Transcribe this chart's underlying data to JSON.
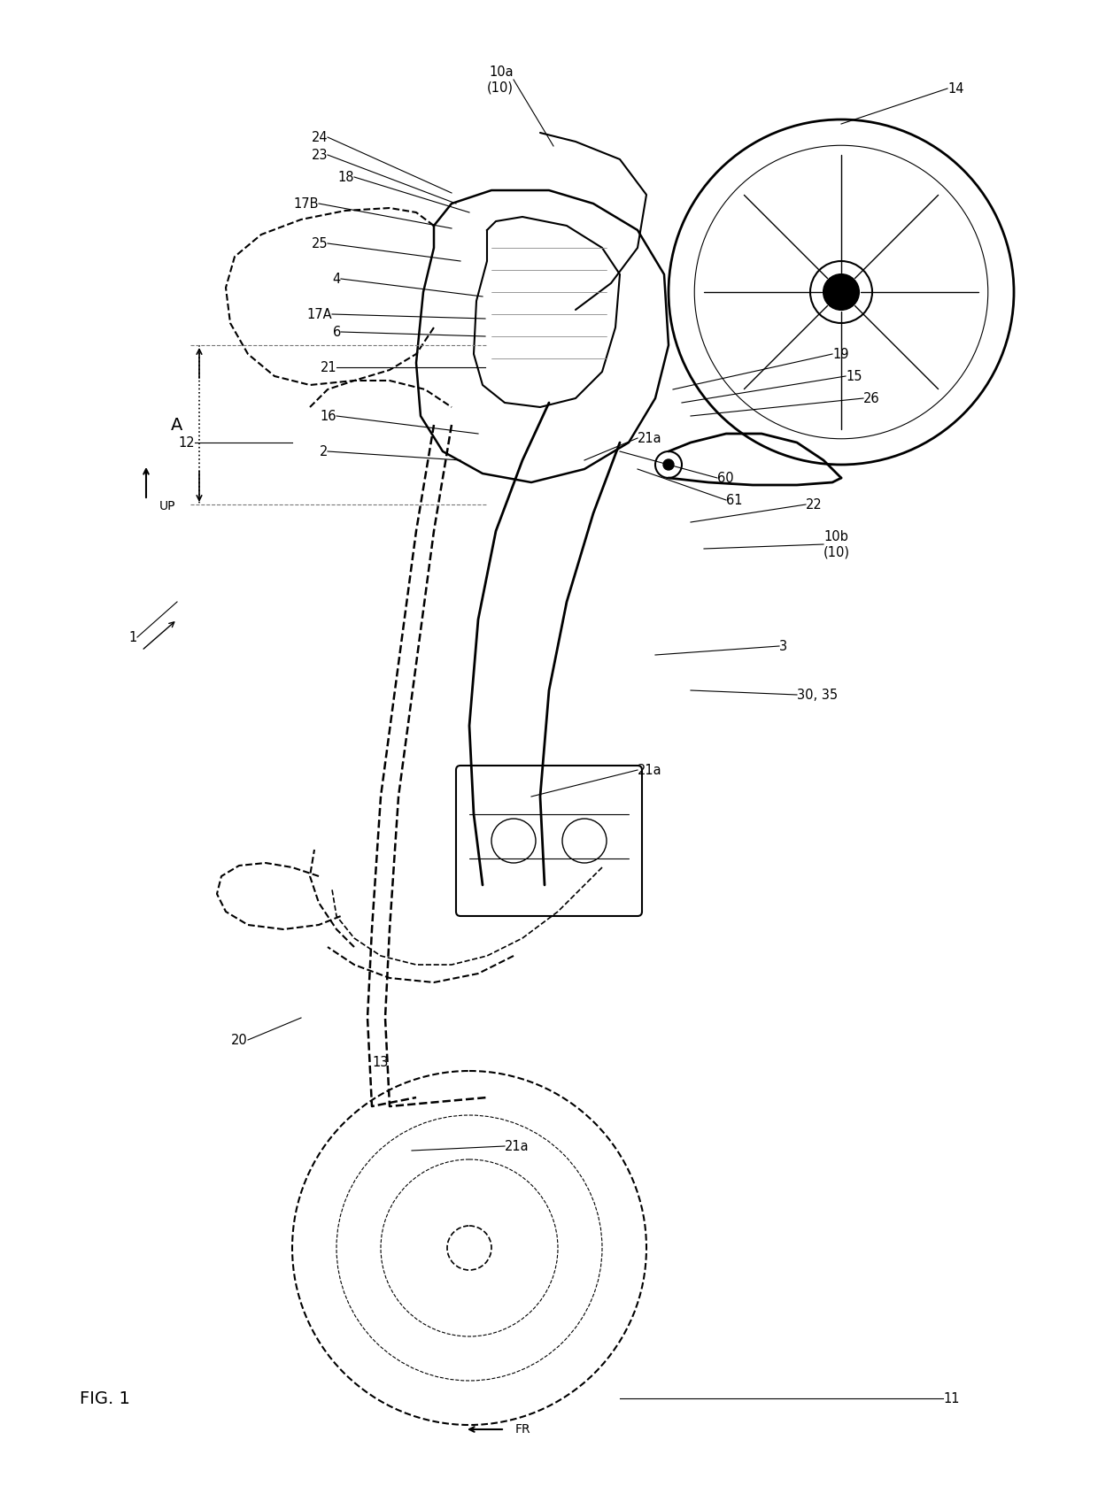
{
  "fig_label": "FIG. 1",
  "title": "",
  "background_color": "#ffffff",
  "line_color": "#000000",
  "dashed_color": "#555555",
  "figsize": [
    12.4,
    16.79
  ],
  "dpi": 100,
  "labels": {
    "fig1": "FIG. 1",
    "1": "1",
    "2": "2",
    "3": "3",
    "4": "4",
    "6": "6",
    "10": "(10)",
    "10a": "10a\n(10)",
    "10b": "10b\n(10)",
    "11": "11",
    "12": "12",
    "13": "13",
    "14": "14",
    "15": "15",
    "16": "16",
    "17A": "17A",
    "17B": "17B",
    "18": "18",
    "19": "19",
    "20": "20",
    "21": "21",
    "21a": "21a",
    "22": "22",
    "23": "23",
    "24": "24",
    "25": "25",
    "26": "26",
    "30_35": "30, 35",
    "60": "60",
    "61": "61",
    "A": "A",
    "UP": "UP",
    "FR": "FR"
  }
}
